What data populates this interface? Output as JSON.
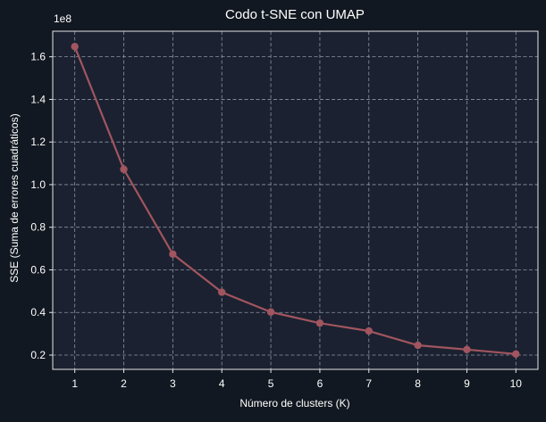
{
  "colors": {
    "figure_background": "#121821",
    "axes_background": "#1b2130",
    "axes_edge": "#e6e6e6",
    "grid": "#8d95a3",
    "text": "#ffffff",
    "line": "#a1555f",
    "marker": "#a1555f"
  },
  "chart_data": {
    "type": "line",
    "title": "Codo t-SNE con UMAP",
    "xlabel": "Número de clusters (K)",
    "ylabel": "SSE (Suma de errores cuadráticos)",
    "y_offset_label": "1e8",
    "y_scale_multiplier": 100000000,
    "x": [
      1,
      2,
      3,
      4,
      5,
      6,
      7,
      8,
      9,
      10
    ],
    "series": [
      {
        "values": [
          164800000,
          107200000,
          67400000,
          49500000,
          40200000,
          35000000,
          31300000,
          24600000,
          22600000,
          20500000
        ]
      }
    ],
    "xticks": [
      1,
      2,
      3,
      4,
      5,
      6,
      7,
      8,
      9,
      10
    ],
    "xtick_labels": [
      "1",
      "2",
      "3",
      "4",
      "5",
      "6",
      "7",
      "8",
      "9",
      "10"
    ],
    "yticks": [
      20000000,
      40000000,
      60000000,
      80000000,
      100000000,
      120000000,
      140000000,
      160000000
    ],
    "ytick_labels": [
      "0.2",
      "0.4",
      "0.6",
      "0.8",
      "1.0",
      "1.2",
      "1.4",
      "1.6"
    ],
    "xlim": [
      0.55,
      10.45
    ],
    "ylim": [
      13300000,
      172000000
    ],
    "grid": true,
    "grid_style": "dashed",
    "legend": "none",
    "marker": "circle"
  }
}
